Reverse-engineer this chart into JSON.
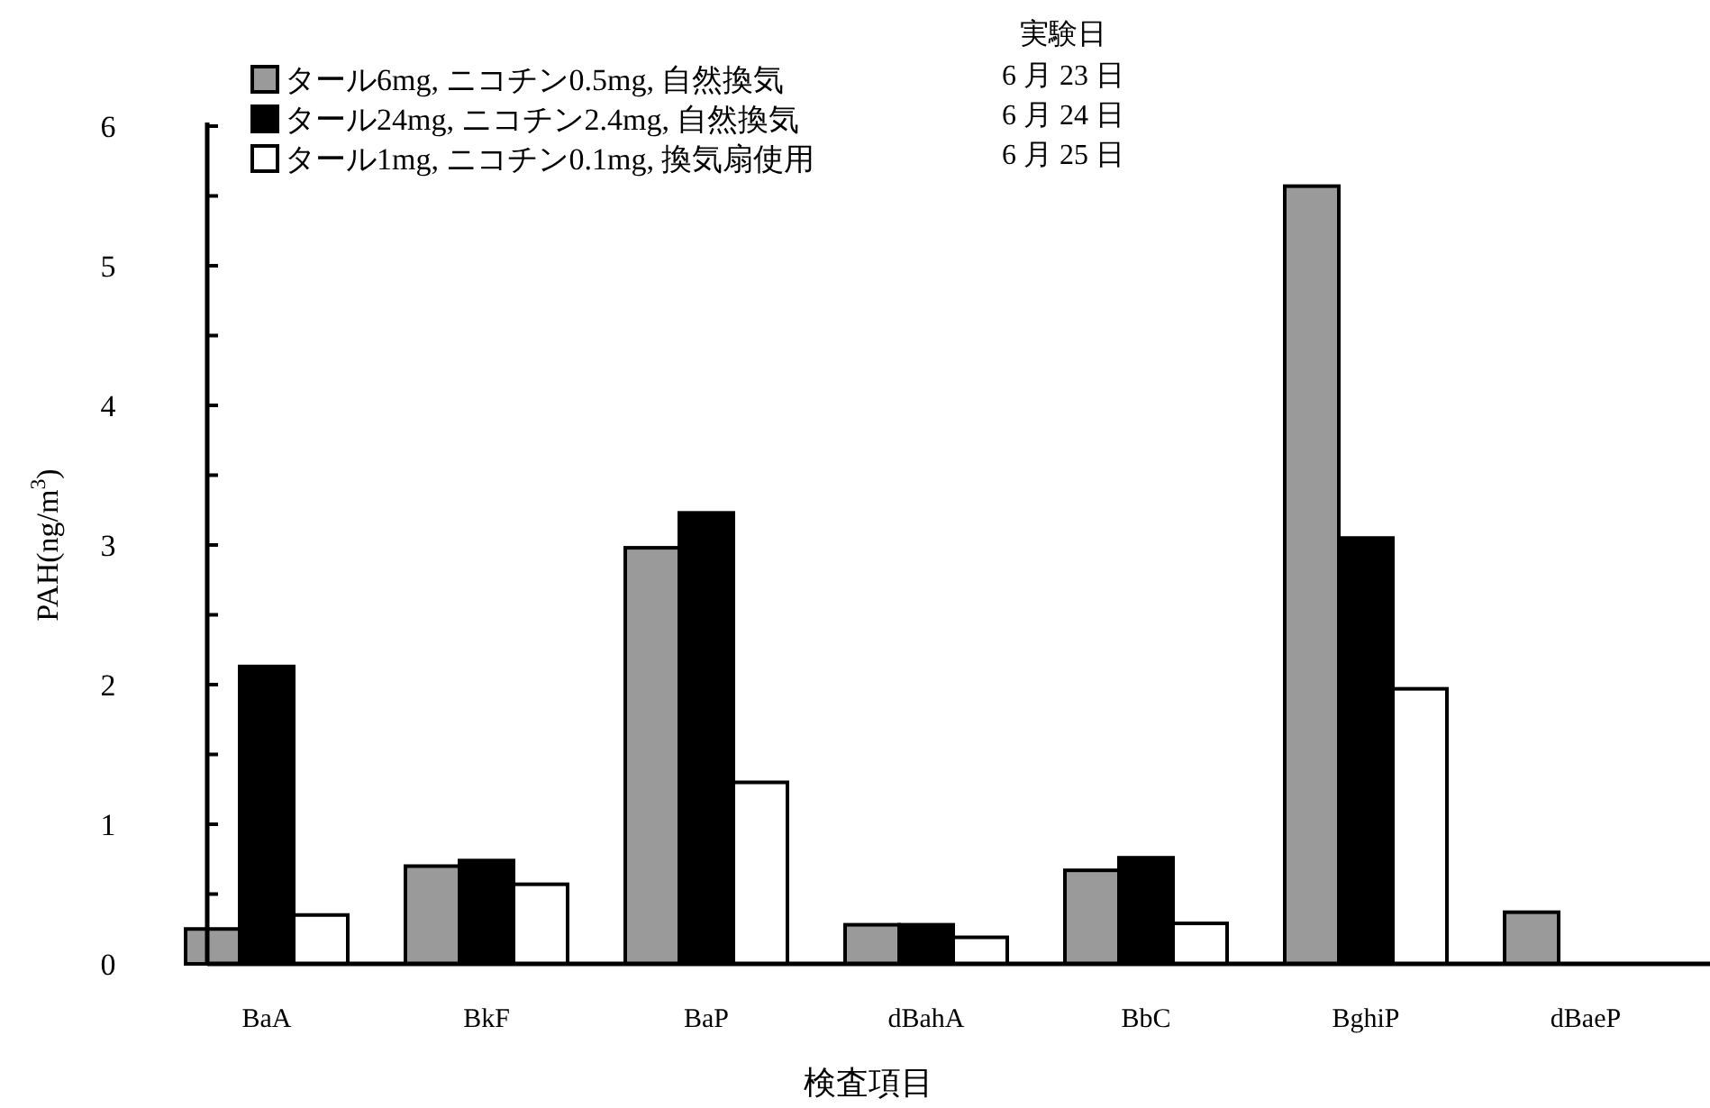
{
  "chart_data": {
    "type": "bar",
    "categories": [
      "BaA",
      "BkF",
      "BaP",
      "dBahA",
      "BbC",
      "BghiP",
      "dBaeP"
    ],
    "series": [
      {
        "name": "タール6mg, ニコチン0.5mg, 自然換気",
        "color": "#9a9a9a",
        "values": [
          0.25,
          0.7,
          2.98,
          0.28,
          0.67,
          5.57,
          0.37
        ]
      },
      {
        "name": "タール24mg, ニコチン2.4mg, 自然換気",
        "color": "#000000",
        "values": [
          2.13,
          0.74,
          3.23,
          0.28,
          0.76,
          3.05,
          0
        ]
      },
      {
        "name": "タール1mg, ニコチン0.1mg, 換気扇使用",
        "color": "#ffffff",
        "values": [
          0.35,
          0.57,
          1.3,
          0.19,
          0.29,
          1.97,
          0
        ]
      }
    ],
    "ylim": [
      0,
      6
    ],
    "yticks": [
      0,
      {
        "value": 0.5,
        "label": null
      },
      1,
      {
        "value": 1.5,
        "label": null
      },
      2,
      {
        "value": 2.5,
        "label": null
      },
      3,
      {
        "value": 3.5,
        "label": null
      },
      4,
      {
        "value": 4.5,
        "label": null
      },
      5,
      {
        "value": 5.5,
        "label": null
      },
      6
    ],
    "xlabel": "検査項目",
    "ylabel": "PAH(ng/m$^{3}$)",
    "legend": "top left",
    "legend_title": "実験日",
    "annotations": [
      "6 月 23 日",
      "6 月 24 日",
      "6 月 25 日"
    ],
    "grid": false
  }
}
